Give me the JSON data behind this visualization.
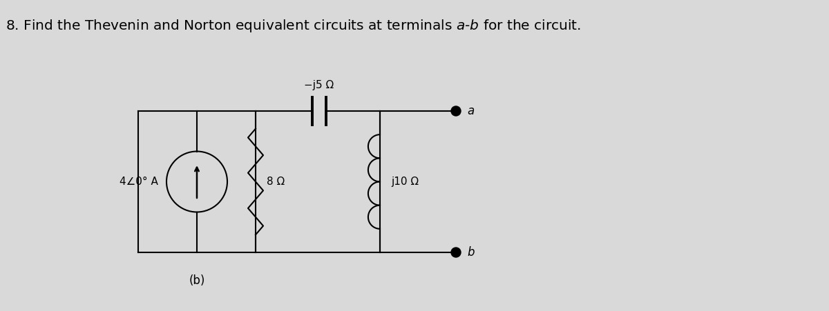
{
  "title": "8. Find the Thevenin and Norton equivalent circuits at terminals $a$-$b$ for the circuit.",
  "title_fontsize": 14.5,
  "bg_color": "#d9d9d9",
  "line_color": "#000000",
  "text_color": "#000000",
  "circuit": {
    "source_label": "4∠0° A",
    "r8_label": "8 Ω",
    "cap_label": "−j5 Ω",
    "ind_label": "j10 Ω",
    "terminal_a": "a",
    "terminal_b": "b",
    "subfig_label": "(b)"
  }
}
